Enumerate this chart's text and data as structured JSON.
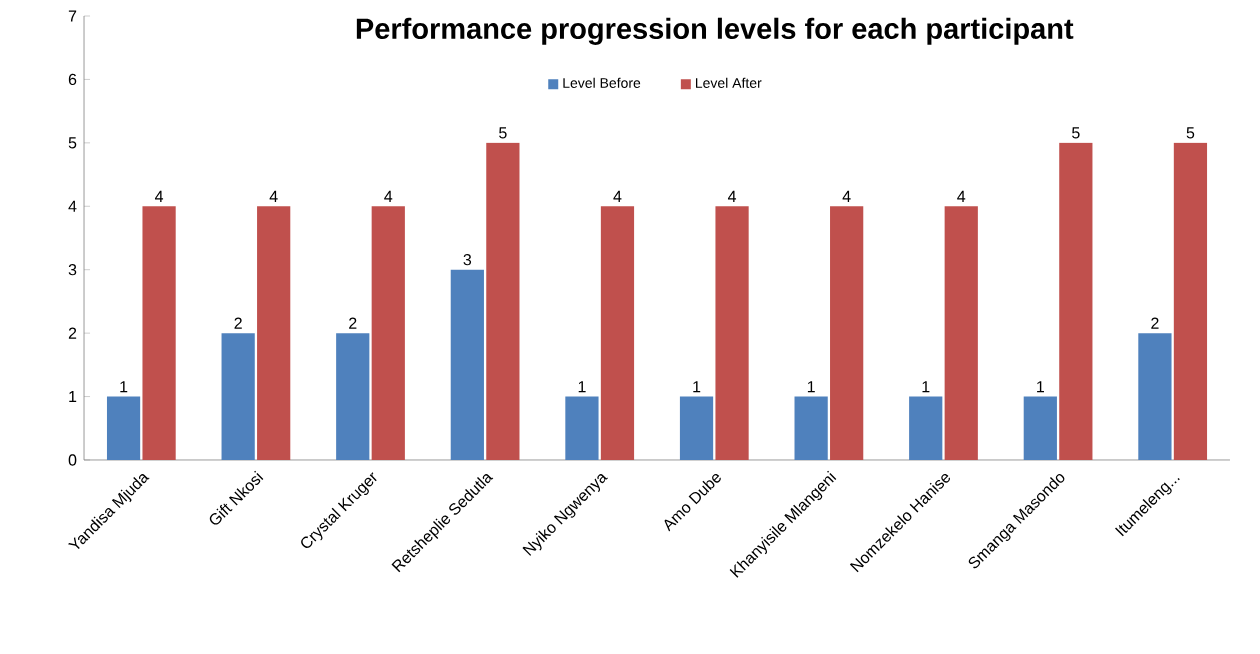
{
  "chart_data": {
    "type": "bar",
    "title": "Performance progression levels for each participant",
    "categories": [
      "Yandisa Mjuda",
      "Gift Nkosi",
      "Crystal Kruger",
      "Retsheplie Sedutla",
      "Nyiko Ngwenya",
      "Amo Dube",
      "Khanyisile Mlangeni",
      "Nomzekelo Hanise",
      "Smanga Masondo",
      "Itumeleng..."
    ],
    "series": [
      {
        "name": "Level Before",
        "color": "#4f81bd",
        "values": [
          1,
          2,
          2,
          3,
          1,
          1,
          1,
          1,
          1,
          2
        ]
      },
      {
        "name": "Level After",
        "color": "#c0504d",
        "values": [
          4,
          4,
          4,
          5,
          4,
          4,
          4,
          4,
          5,
          5
        ]
      }
    ],
    "ylim": [
      0,
      7
    ],
    "yticks": [
      0,
      1,
      2,
      3,
      4,
      5,
      6,
      7
    ],
    "grid": false,
    "legend": "top",
    "data_labels": true
  }
}
